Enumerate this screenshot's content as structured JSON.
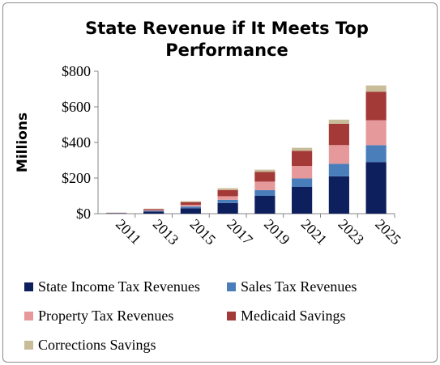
{
  "chart_data": {
    "type": "bar",
    "stacked": true,
    "title": "State Revenue if It Meets Top Performance",
    "ylabel": "Millions",
    "xlabel": "",
    "ylim": [
      0,
      800
    ],
    "yticks": [
      0,
      200,
      400,
      600,
      800
    ],
    "ytick_labels": [
      "$0",
      "$200",
      "$400",
      "$600",
      "$800"
    ],
    "categories": [
      "2011",
      "2013",
      "2015",
      "2017",
      "2019",
      "2021",
      "2023",
      "2025"
    ],
    "grid": false,
    "legend_position": "bottom",
    "series": [
      {
        "name": "State Income Tax Revenues",
        "color": "#0d1f5c",
        "values": [
          2,
          12,
          30,
          60,
          100,
          150,
          210,
          290
        ]
      },
      {
        "name": "Sales Tax Revenues",
        "color": "#4a7ebb",
        "values": [
          1,
          4,
          10,
          18,
          32,
          48,
          70,
          95
        ]
      },
      {
        "name": "Property Tax Revenues",
        "color": "#e6999b",
        "values": [
          1,
          4,
          10,
          20,
          48,
          70,
          105,
          140
        ]
      },
      {
        "name": "Medicaid Savings",
        "color": "#a33a37",
        "values": [
          1,
          6,
          15,
          35,
          55,
          85,
          120,
          160
        ]
      },
      {
        "name": "Corrections Savings",
        "color": "#c9bc98",
        "values": [
          1,
          2,
          5,
          10,
          12,
          17,
          23,
          35
        ]
      }
    ]
  }
}
